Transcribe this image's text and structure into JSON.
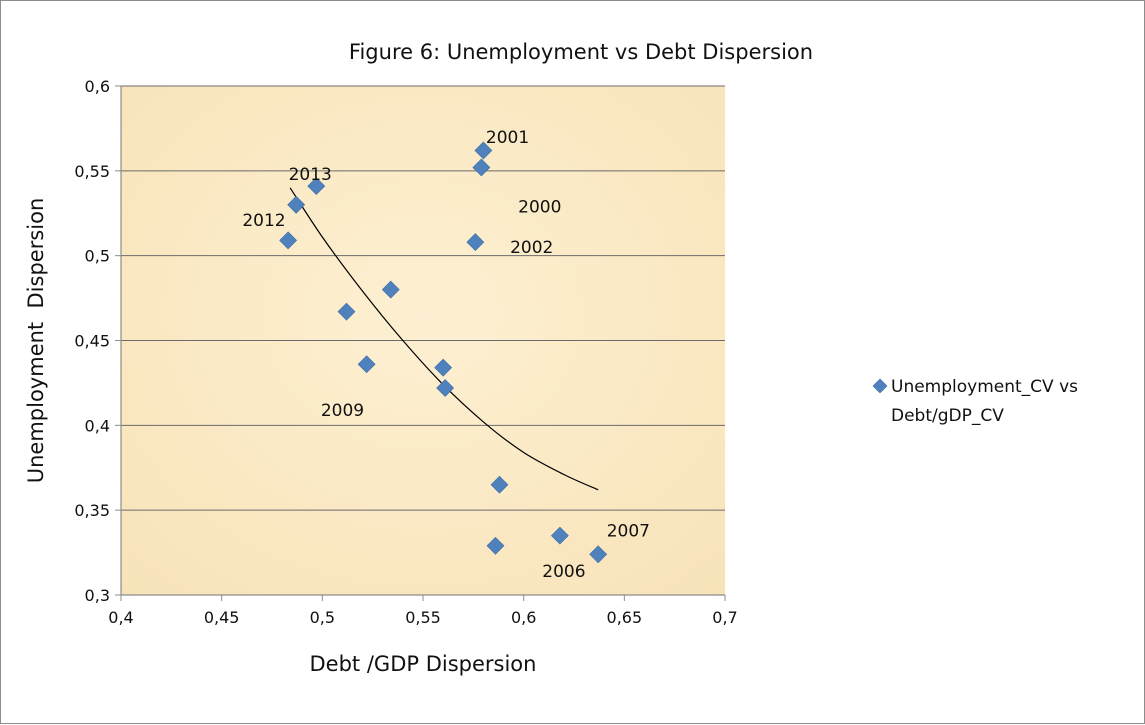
{
  "chart_data": {
    "type": "scatter",
    "title": "Figure 6: Unemployment vs Debt Dispersion",
    "xlabel": "Debt /GDP Dispersion",
    "ylabel": "Unemployment  Dispersion",
    "xlim": [
      0.4,
      0.7
    ],
    "ylim": [
      0.3,
      0.6
    ],
    "x_ticks": [
      "0,4",
      "0,45",
      "0,5",
      "0,55",
      "0,6",
      "0,65",
      "0,7"
    ],
    "y_ticks": [
      "0,3",
      "0,35",
      "0,4",
      "0,45",
      "0,5",
      "0,55",
      "0,6"
    ],
    "grid": "horizontal",
    "legend_position": "right",
    "series": [
      {
        "name": "Unemployment_CV vs Debt/gDP_CV",
        "legend_lines": [
          "Unemployment_CV vs",
          "Debt/gDP_CV"
        ],
        "color": "#4f81bd",
        "marker": "diamond",
        "x": [
          0.579,
          0.58,
          0.576,
          0.497,
          0.487,
          0.483,
          0.534,
          0.512,
          0.522,
          0.56,
          0.561,
          0.588,
          0.586,
          0.618,
          0.637
        ],
        "y": [
          0.552,
          0.562,
          0.508,
          0.541,
          0.53,
          0.509,
          0.48,
          0.467,
          0.436,
          0.434,
          0.422,
          0.365,
          0.329,
          0.335,
          0.324
        ]
      }
    ],
    "trendline": {
      "type": "curve",
      "color": "#000000",
      "x": [
        0.484,
        0.5,
        0.52,
        0.54,
        0.56,
        0.58,
        0.6,
        0.62,
        0.637
      ],
      "y": [
        0.54,
        0.511,
        0.479,
        0.45,
        0.424,
        0.402,
        0.384,
        0.371,
        0.362
      ]
    },
    "annotations": [
      {
        "text": "2001",
        "x": 0.592,
        "y": 0.57
      },
      {
        "text": "2013",
        "x": 0.494,
        "y": 0.548
      },
      {
        "text": "2000",
        "x": 0.608,
        "y": 0.529
      },
      {
        "text": "2012",
        "x": 0.471,
        "y": 0.521
      },
      {
        "text": "2002",
        "x": 0.604,
        "y": 0.505
      },
      {
        "text": "2009",
        "x": 0.51,
        "y": 0.409
      },
      {
        "text": "2007",
        "x": 0.652,
        "y": 0.338
      },
      {
        "text": "2006",
        "x": 0.62,
        "y": 0.314
      }
    ],
    "colors": {
      "plot_bg": "#fbebc8",
      "grid": "#6b6b6b",
      "axis": "#8c8c8c",
      "marker": "#4f81bd"
    }
  }
}
